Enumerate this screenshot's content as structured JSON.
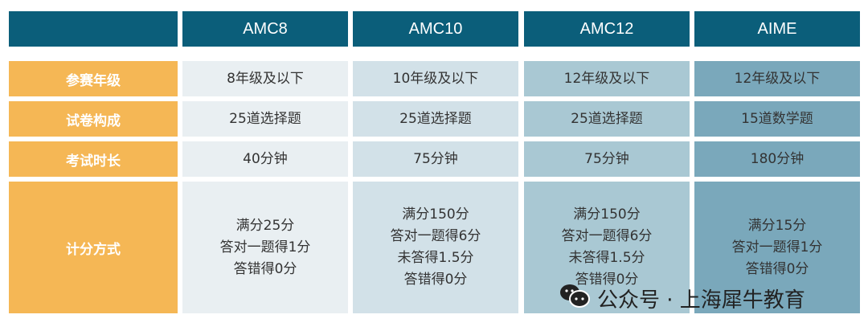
{
  "header": {
    "corner": "",
    "columns": [
      "AMC8",
      "AMC10",
      "AMC12",
      "AIME"
    ]
  },
  "rows": [
    {
      "label": "参赛年级",
      "values": [
        "8年级及以下",
        "10年级及以下",
        "12年级及以下",
        "12年级及以下"
      ]
    },
    {
      "label": "试卷构成",
      "values": [
        "25道选择题",
        "25道选择题",
        "25道选择题",
        "15道数学题"
      ]
    },
    {
      "label": "考试时长",
      "values": [
        "40分钟",
        "75分钟",
        "75分钟",
        "180分钟"
      ]
    },
    {
      "label": "计分方式",
      "values": [
        "满分25分\n答对一题得1分\n答错得0分",
        "满分150分\n答对一题得6分\n未答得1.5分\n答错得0分",
        "满分150分\n答对一题得6分\n未答得1.5分\n答错得0分",
        "满分15分\n答对一题得1分\n答错得0分"
      ]
    }
  ],
  "watermark": {
    "text": "公众号 · 上海犀牛教育",
    "icon": "wechat-icon"
  },
  "colors": {
    "header": "#0b5e7a",
    "label": "#f5b755",
    "columns": [
      "#e9eff2",
      "#d2e1e8",
      "#a9c8d3",
      "#7aa8bb"
    ]
  }
}
